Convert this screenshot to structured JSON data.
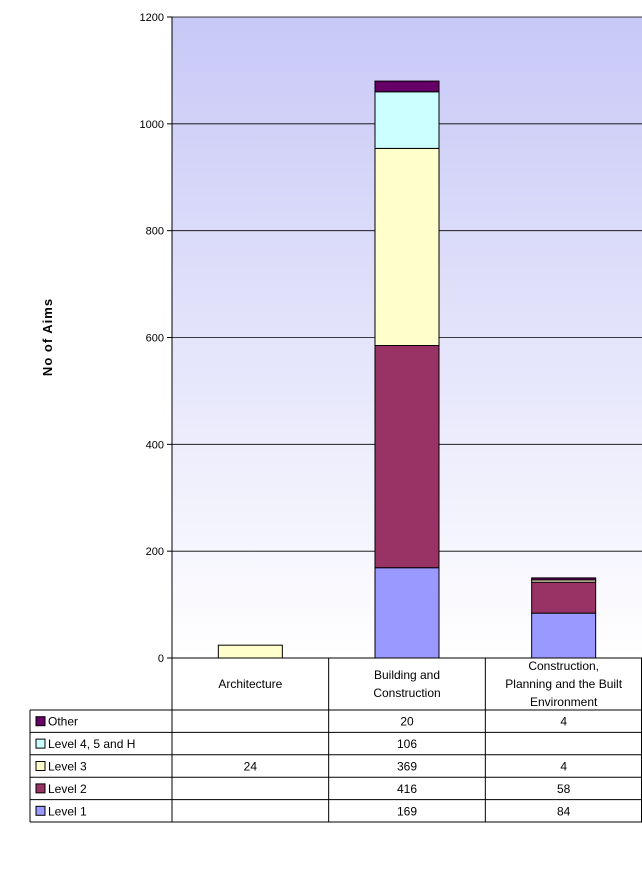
{
  "chart_data": {
    "type": "bar",
    "stacked": true,
    "ylabel": "No of Aims",
    "xlabel": "",
    "ylim": [
      0,
      1200
    ],
    "yticks": [
      "0",
      "200",
      "400",
      "600",
      "800",
      "1000",
      "1200"
    ],
    "categories": [
      [
        "Architecture"
      ],
      [
        "Building and",
        "Construction"
      ],
      [
        "Construction,",
        "Planning and the Built",
        "Environment"
      ]
    ],
    "series": [
      {
        "name": "Level 1",
        "color": "#9999ff",
        "values": [
          null,
          169,
          84
        ],
        "labels": [
          "",
          "169",
          "84"
        ]
      },
      {
        "name": "Level 2",
        "color": "#993366",
        "values": [
          null,
          416,
          58
        ],
        "labels": [
          "",
          "416",
          "58"
        ]
      },
      {
        "name": "Level 3",
        "color": "#ffffcc",
        "values": [
          24,
          369,
          4
        ],
        "labels": [
          "24",
          "369",
          "4"
        ]
      },
      {
        "name": "Level 4, 5 and H",
        "color": "#ccffff",
        "values": [
          null,
          106,
          null
        ],
        "labels": [
          "",
          "106",
          ""
        ]
      },
      {
        "name": "Other",
        "color": "#660066",
        "values": [
          null,
          20,
          4
        ],
        "labels": [
          "",
          "20",
          "4"
        ]
      }
    ],
    "legend_order": [
      "Other",
      "Level 4, 5 and H",
      "Level 3",
      "Level 2",
      "Level 1"
    ],
    "plot_background": "gradient lavender-to-white",
    "grid": true,
    "legend_placement": "data-table-left"
  }
}
